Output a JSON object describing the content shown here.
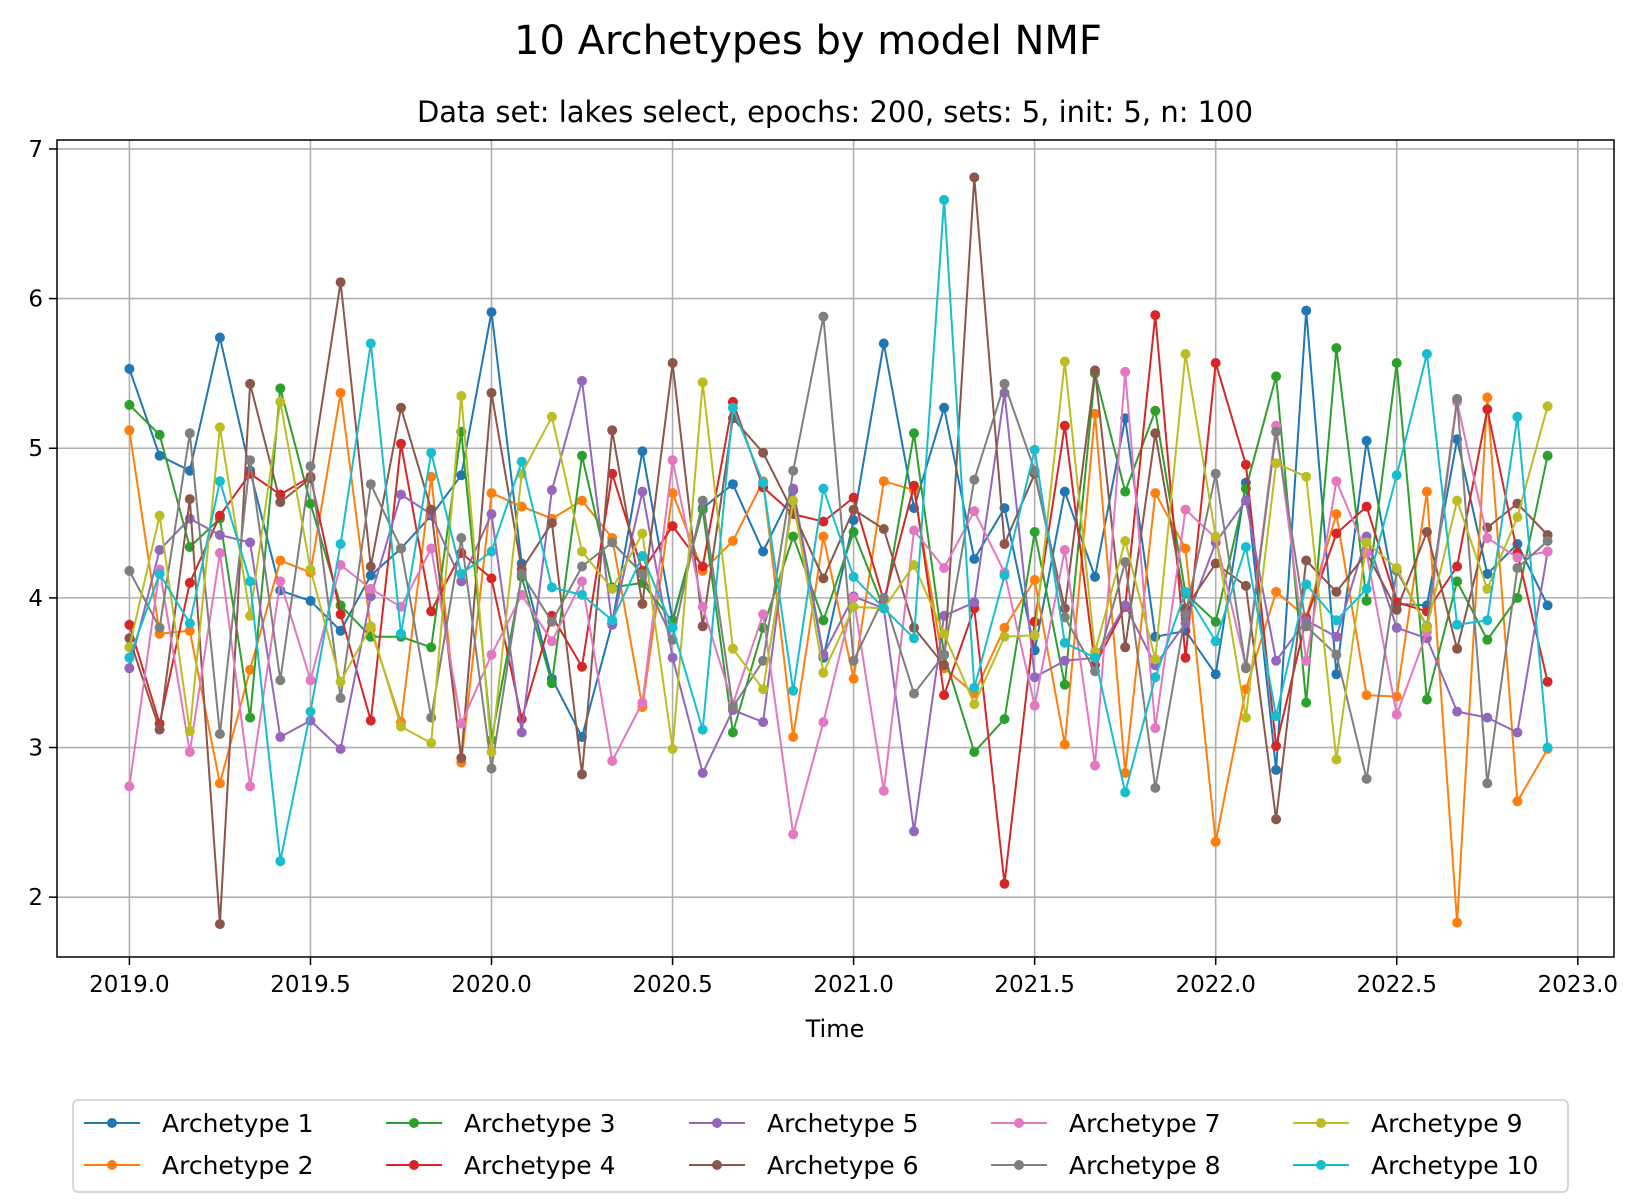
{
  "chart_data": {
    "type": "line",
    "title": "10 Archetypes by model NMF",
    "subtitle": "Data set: lakes select, epochs: 200, sets: 5, init: 5, n: 100",
    "xlabel": "Time",
    "ylabel": "",
    "xlim": [
      2018.8,
      2023.1
    ],
    "ylim": [
      1.6,
      7.06
    ],
    "grid": true,
    "legend_location": "bottom, below plot",
    "x_ticks": [
      "2019.0",
      "2019.5",
      "2020.0",
      "2020.5",
      "2021.0",
      "2021.5",
      "2022.0",
      "2022.5",
      "2023.0"
    ],
    "y_ticks": [
      "2",
      "3",
      "4",
      "5",
      "6",
      "7"
    ],
    "x": [
      2019.0,
      2019.0833,
      2019.1667,
      2019.25,
      2019.3333,
      2019.4167,
      2019.5,
      2019.5833,
      2019.6667,
      2019.75,
      2019.8333,
      2019.9167,
      2020.0,
      2020.0833,
      2020.1667,
      2020.25,
      2020.3333,
      2020.4167,
      2020.5,
      2020.5833,
      2020.6667,
      2020.75,
      2020.8333,
      2020.9167,
      2021.0,
      2021.0833,
      2021.1667,
      2021.25,
      2021.3333,
      2021.4167,
      2021.5,
      2021.5833,
      2021.6667,
      2021.75,
      2021.8333,
      2021.9167,
      2022.0,
      2022.0833,
      2022.1667,
      2022.25,
      2022.3333,
      2022.4167,
      2022.5,
      2022.5833,
      2022.6667,
      2022.75,
      2022.8333,
      2022.9167
    ],
    "series": [
      {
        "name": "Archetype 1",
        "color": "#1f77b4",
        "values": [
          5.53,
          4.95,
          4.85,
          5.74,
          4.85,
          4.05,
          3.98,
          3.78,
          4.15,
          4.33,
          4.55,
          4.82,
          5.91,
          4.23,
          3.46,
          3.07,
          3.83,
          4.98,
          3.85,
          4.6,
          4.76,
          4.31,
          4.72,
          3.6,
          4.52,
          5.7,
          4.6,
          5.27,
          4.26,
          4.6,
          3.65,
          4.71,
          4.14,
          5.2,
          3.74,
          3.78,
          3.49,
          4.77,
          2.85,
          5.92,
          3.49,
          5.05,
          3.96,
          3.95,
          5.06,
          4.16,
          4.36,
          3.95
        ]
      },
      {
        "name": "Archetype 2",
        "color": "#ff7f0e",
        "values": [
          5.12,
          3.76,
          3.78,
          2.76,
          3.52,
          4.25,
          4.17,
          5.37,
          3.79,
          3.17,
          4.81,
          2.9,
          4.7,
          4.61,
          4.53,
          4.65,
          4.4,
          3.27,
          4.7,
          4.18,
          4.38,
          4.78,
          3.07,
          4.41,
          3.46,
          4.78,
          4.72,
          3.53,
          3.36,
          3.8,
          4.12,
          3.02,
          5.23,
          2.83,
          4.7,
          4.33,
          2.37,
          3.39,
          4.04,
          3.87,
          4.56,
          3.35,
          3.34,
          4.71,
          1.83,
          5.34,
          2.64,
          2.99
        ]
      },
      {
        "name": "Archetype 3",
        "color": "#2ca02c",
        "values": [
          5.29,
          5.09,
          4.34,
          4.53,
          3.2,
          5.4,
          4.63,
          3.95,
          3.74,
          3.74,
          3.67,
          5.11,
          3.05,
          4.14,
          3.43,
          4.95,
          4.07,
          4.1,
          3.84,
          4.59,
          3.1,
          3.8,
          4.41,
          3.85,
          4.44,
          3.93,
          5.1,
          3.62,
          2.97,
          3.19,
          4.44,
          3.42,
          5.5,
          4.71,
          5.25,
          4.03,
          3.84,
          4.73,
          5.48,
          3.3,
          5.67,
          3.98,
          5.57,
          3.32,
          4.11,
          3.72,
          4.0,
          4.95
        ]
      },
      {
        "name": "Archetype 4",
        "color": "#d62728",
        "values": [
          3.82,
          3.16,
          4.1,
          4.55,
          4.83,
          4.69,
          4.81,
          3.89,
          3.18,
          5.03,
          3.91,
          4.3,
          4.13,
          3.19,
          3.88,
          3.54,
          4.83,
          4.18,
          4.48,
          4.21,
          5.31,
          4.74,
          4.56,
          4.51,
          4.67,
          3.98,
          4.75,
          3.35,
          3.93,
          2.09,
          3.84,
          5.15,
          3.55,
          3.94,
          5.89,
          3.6,
          5.57,
          4.89,
          3.01,
          3.86,
          4.43,
          4.61,
          3.97,
          3.91,
          4.21,
          5.26,
          4.3,
          3.44
        ]
      },
      {
        "name": "Archetype 5",
        "color": "#9467bd",
        "values": [
          3.53,
          4.32,
          4.53,
          4.42,
          4.37,
          3.07,
          3.18,
          2.99,
          4.01,
          4.69,
          4.56,
          4.11,
          4.56,
          3.1,
          4.72,
          5.45,
          3.82,
          4.71,
          3.6,
          2.83,
          3.25,
          3.17,
          4.73,
          3.62,
          4.01,
          3.93,
          2.44,
          3.88,
          3.97,
          5.37,
          3.47,
          3.58,
          3.6,
          3.95,
          3.55,
          3.83,
          4.37,
          4.65,
          3.58,
          3.85,
          3.74,
          4.41,
          3.8,
          3.73,
          3.24,
          3.2,
          3.1,
          4.31
        ]
      },
      {
        "name": "Archetype 6",
        "color": "#8c564b",
        "values": [
          3.73,
          3.12,
          4.66,
          1.82,
          5.43,
          4.64,
          4.8,
          6.11,
          4.21,
          5.27,
          4.59,
          2.93,
          5.37,
          4.19,
          4.5,
          2.82,
          5.12,
          3.96,
          5.57,
          3.81,
          5.2,
          4.97,
          4.57,
          4.13,
          4.59,
          4.46,
          3.8,
          3.55,
          6.81,
          4.36,
          4.83,
          3.93,
          5.52,
          3.67,
          5.1,
          3.93,
          4.23,
          4.08,
          2.52,
          4.25,
          4.04,
          4.3,
          3.92,
          4.44,
          3.66,
          4.47,
          4.63,
          4.42
        ]
      },
      {
        "name": "Archetype 7",
        "color": "#e377c2",
        "values": [
          2.74,
          4.19,
          2.97,
          4.3,
          2.74,
          4.11,
          3.45,
          4.22,
          4.06,
          3.94,
          4.33,
          3.16,
          3.62,
          4.02,
          3.71,
          4.11,
          2.91,
          3.3,
          4.92,
          3.94,
          3.29,
          3.89,
          2.42,
          3.17,
          4.0,
          2.71,
          4.45,
          4.2,
          4.58,
          4.17,
          3.28,
          4.32,
          2.88,
          5.51,
          3.13,
          4.59,
          4.4,
          3.54,
          5.15,
          3.58,
          4.78,
          4.3,
          3.22,
          3.77,
          5.31,
          4.4,
          4.27,
          4.31
        ]
      },
      {
        "name": "Archetype 8",
        "color": "#7f7f7f",
        "values": [
          4.18,
          3.8,
          5.1,
          3.09,
          4.92,
          3.45,
          4.88,
          3.33,
          4.76,
          4.33,
          3.2,
          4.4,
          2.86,
          4.16,
          3.84,
          4.21,
          4.37,
          4.16,
          3.72,
          4.65,
          3.27,
          3.58,
          4.85,
          5.88,
          3.58,
          4.0,
          3.36,
          3.62,
          4.79,
          5.43,
          4.85,
          3.87,
          3.51,
          4.24,
          2.73,
          3.89,
          4.83,
          3.53,
          5.11,
          3.81,
          3.62,
          2.79,
          4.18,
          3.81,
          5.33,
          2.76,
          4.2,
          4.38
        ]
      },
      {
        "name": "Archetype 9",
        "color": "#bcbd22",
        "values": [
          3.67,
          4.55,
          3.11,
          5.14,
          3.88,
          5.31,
          4.19,
          3.44,
          3.81,
          3.14,
          3.03,
          5.35,
          2.97,
          4.83,
          5.21,
          4.31,
          4.06,
          4.43,
          2.99,
          5.44,
          3.66,
          3.39,
          4.65,
          3.5,
          3.94,
          3.93,
          4.22,
          3.76,
          3.29,
          3.74,
          3.75,
          5.58,
          3.64,
          4.38,
          3.59,
          5.63,
          4.41,
          3.2,
          4.9,
          4.81,
          2.92,
          4.37,
          4.2,
          3.8,
          4.65,
          4.06,
          4.54,
          5.28
        ]
      },
      {
        "name": "Archetype 10",
        "color": "#17becf",
        "values": [
          3.6,
          4.16,
          3.83,
          4.78,
          4.11,
          2.24,
          3.24,
          4.36,
          5.7,
          3.76,
          4.97,
          4.16,
          4.31,
          4.91,
          4.07,
          4.02,
          3.85,
          4.28,
          3.8,
          3.12,
          5.27,
          4.77,
          3.38,
          4.73,
          4.14,
          3.93,
          3.73,
          6.66,
          3.4,
          4.15,
          4.99,
          3.7,
          3.6,
          2.7,
          3.47,
          4.04,
          3.71,
          4.34,
          3.21,
          4.09,
          3.85,
          4.06,
          4.82,
          5.63,
          3.82,
          3.85,
          5.21,
          3.0
        ]
      }
    ]
  }
}
